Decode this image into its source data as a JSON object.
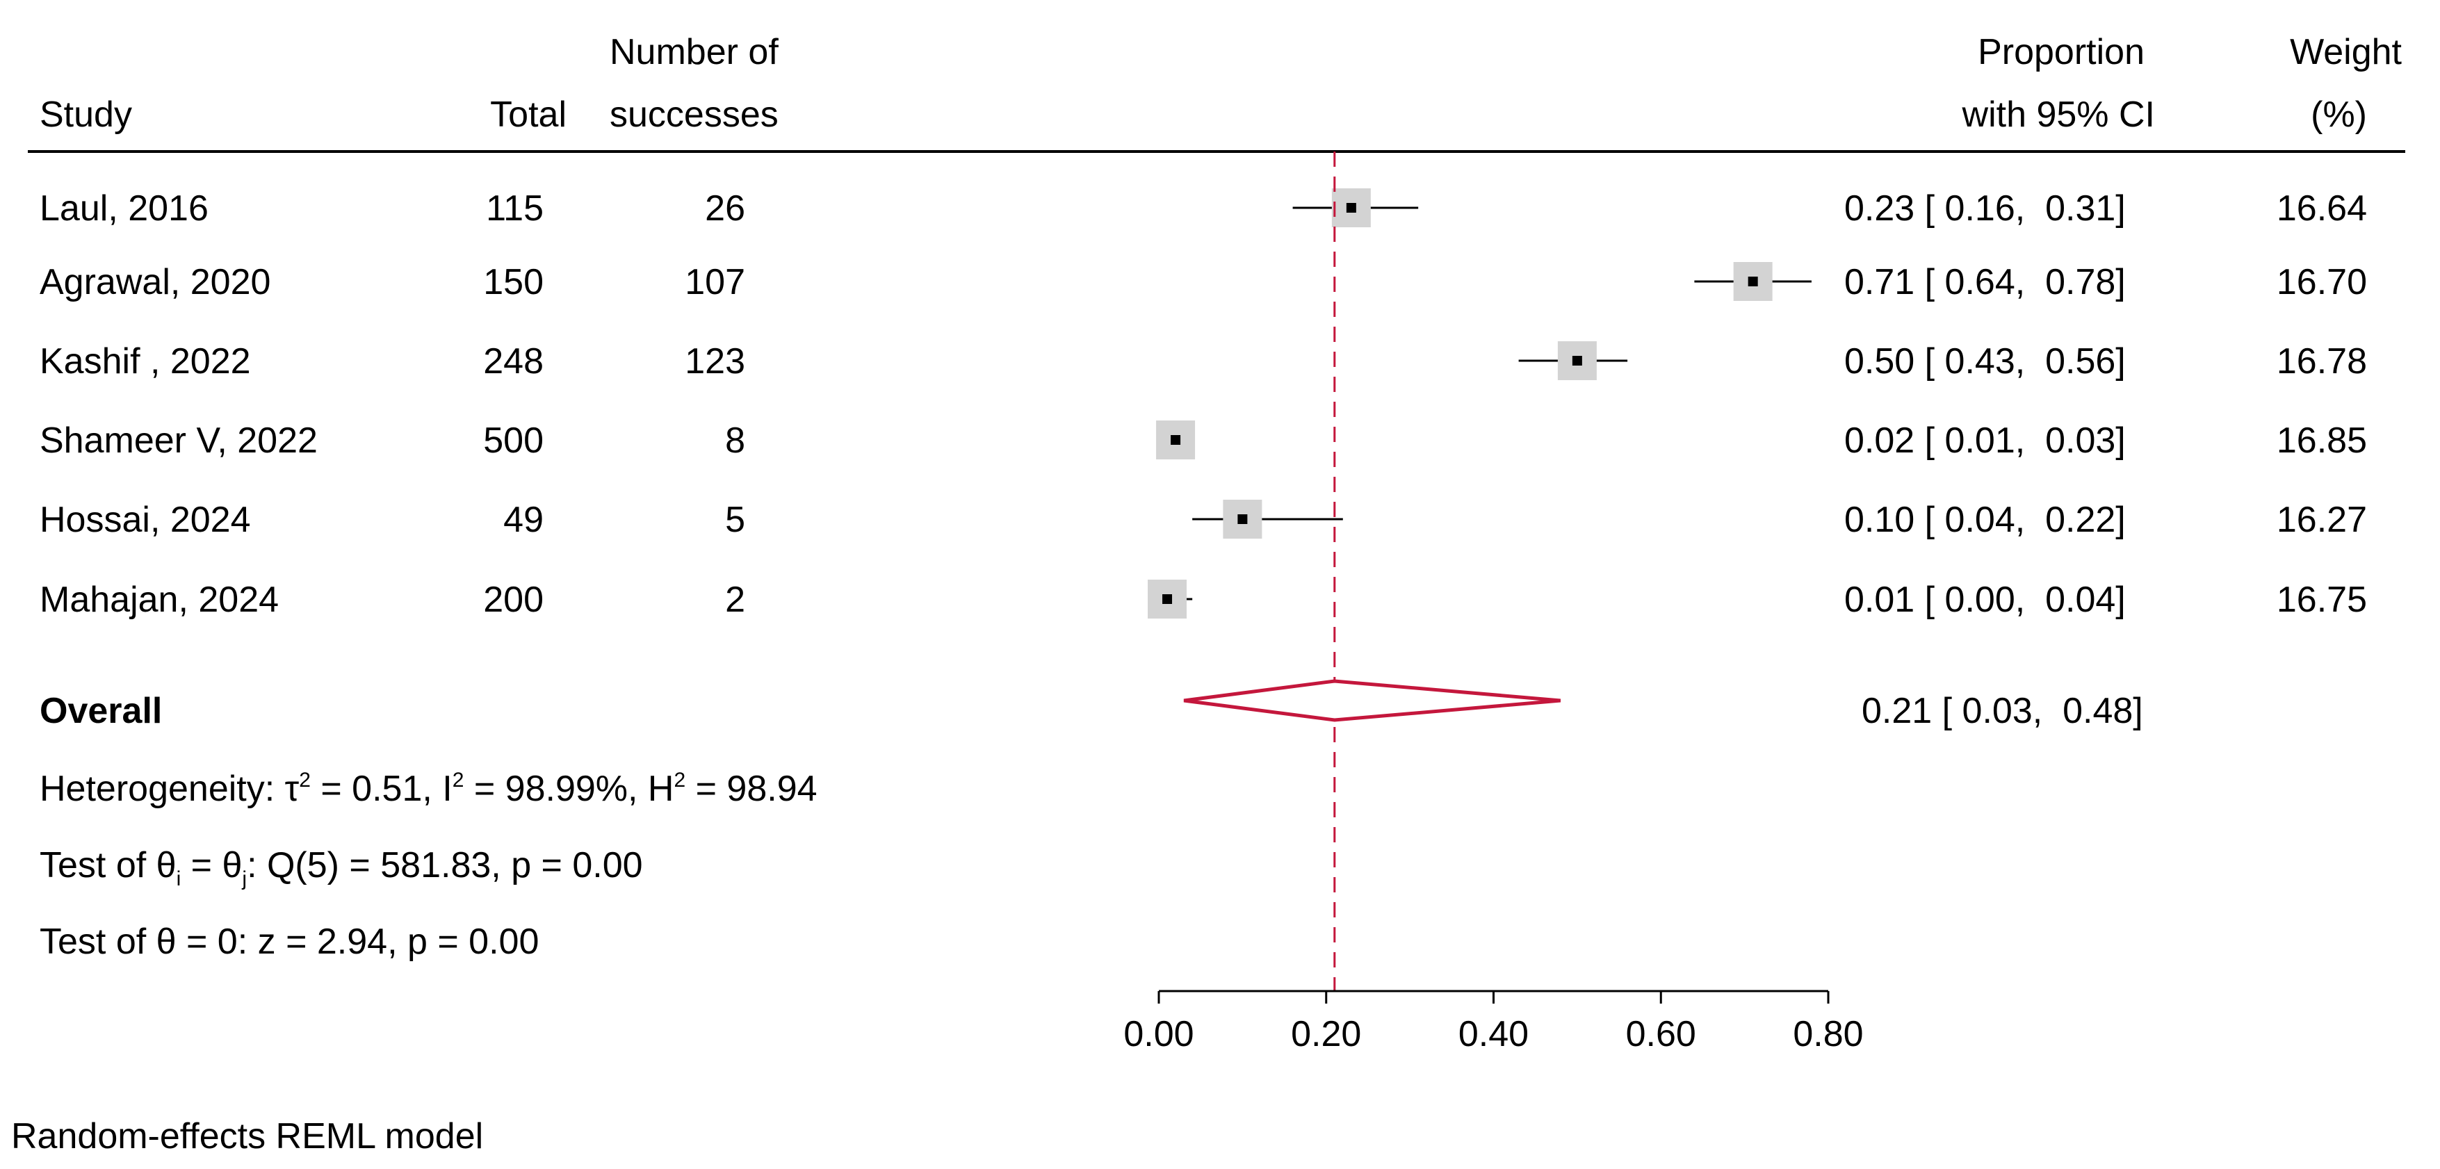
{
  "headers": {
    "study": "Study",
    "total": "Total",
    "successes_line1": "Number of",
    "successes_line2": "successes",
    "prop_line1": "Proportion",
    "prop_line2": "with 95% CI",
    "weight_line1": "Weight",
    "weight_line2": "(%)"
  },
  "chart_data": {
    "type": "forest",
    "xlim": [
      0,
      0.8
    ],
    "xticks": [
      0,
      0.2,
      0.4,
      0.6,
      0.8
    ],
    "xtick_labels": [
      "0.00",
      "0.20",
      "0.40",
      "0.60",
      "0.80"
    ],
    "reference_line": 0.21,
    "colors": {
      "diamond": "#c4173c",
      "reference": "#c4173c",
      "box": "#d3d3d3",
      "point": "#000000"
    },
    "studies": [
      {
        "study": "Laul, 2016",
        "total": "115",
        "successes": "26",
        "est": 0.23,
        "lo": 0.16,
        "hi": 0.31,
        "ci_text": "0.23 [ 0.16,  0.31]",
        "weight": "16.64"
      },
      {
        "study": "Agrawal, 2020",
        "total": "150",
        "successes": "107",
        "est": 0.71,
        "lo": 0.64,
        "hi": 0.78,
        "ci_text": "0.71 [ 0.64,  0.78]",
        "weight": "16.70"
      },
      {
        "study": "Kashif , 2022",
        "total": "248",
        "successes": "123",
        "est": 0.5,
        "lo": 0.43,
        "hi": 0.56,
        "ci_text": "0.50 [ 0.43,  0.56]",
        "weight": "16.78"
      },
      {
        "study": "Shameer V, 2022",
        "total": "500",
        "successes": "8",
        "est": 0.02,
        "lo": 0.01,
        "hi": 0.03,
        "ci_text": "0.02 [ 0.01,  0.03]",
        "weight": "16.85"
      },
      {
        "study": "Hossai, 2024",
        "total": "49",
        "successes": "5",
        "est": 0.1,
        "lo": 0.04,
        "hi": 0.22,
        "ci_text": "0.10 [ 0.04,  0.22]",
        "weight": "16.27"
      },
      {
        "study": "Mahajan, 2024",
        "total": "200",
        "successes": "2",
        "est": 0.01,
        "lo": 0.0,
        "hi": 0.04,
        "ci_text": "0.01 [ 0.00,  0.04]",
        "weight": "16.75"
      }
    ],
    "overall": {
      "label": "Overall",
      "est": 0.21,
      "lo": 0.03,
      "hi": 0.48,
      "ci_text": "0.21 [ 0.03,  0.48]"
    }
  },
  "stats": {
    "heterogeneity": {
      "prefix": "Heterogeneity: τ",
      "tau_sq": "2",
      "tau_rest": " = 0.51, I",
      "i_sq": "2",
      "i_rest": " = 98.99%, H",
      "h_sq": "2",
      "h_rest": " = 98.94"
    },
    "test_ij": {
      "prefix": "Test of θ",
      "sub_i": "i",
      "mid": " = θ",
      "sub_j": "j",
      "rest": ": Q(5) = 581.83, p = 0.00"
    },
    "test_zero": "Test of θ = 0: z = 2.94, p = 0.00"
  },
  "footer": "Random-effects REML model"
}
